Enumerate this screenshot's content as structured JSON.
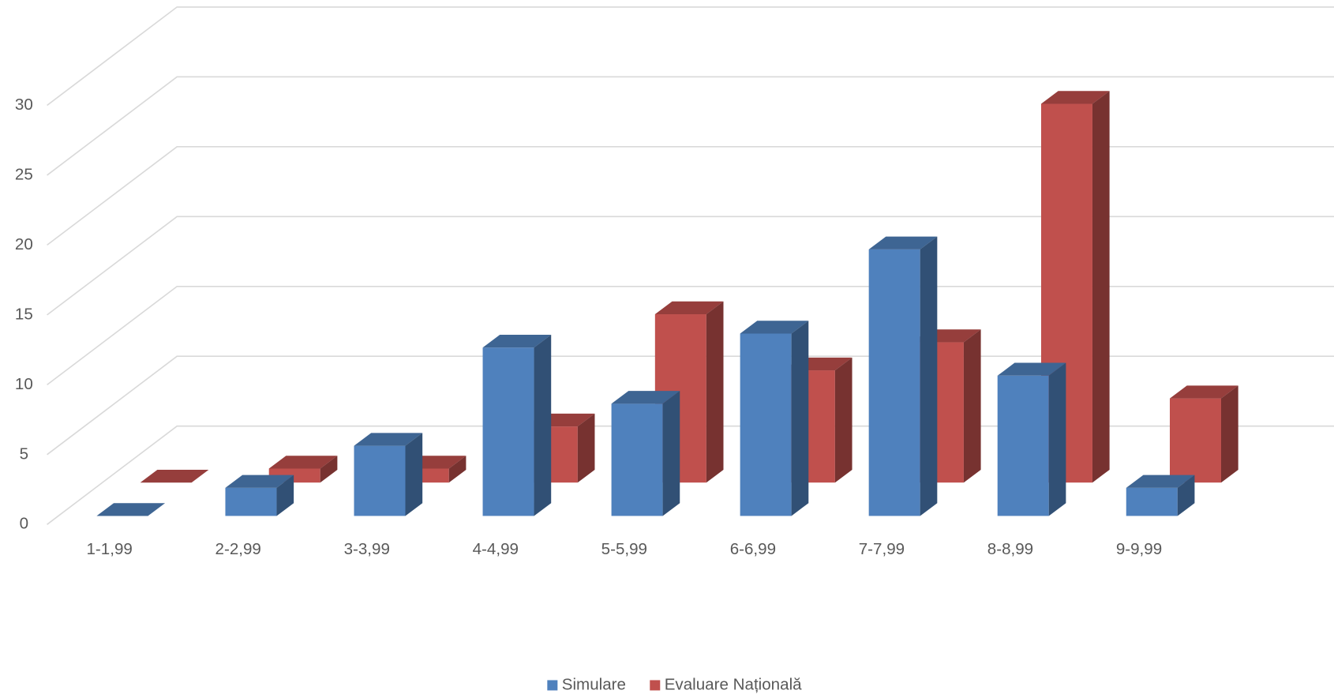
{
  "chart_data": {
    "type": "bar3d",
    "categories": [
      "1-1,99",
      "2-2,99",
      "3-3,99",
      "4-4,99",
      "5-5,99",
      "6-6,99",
      "7-7,99",
      "8-8,99",
      "9-9,99"
    ],
    "series": [
      {
        "name": "Simulare",
        "color": "#4f81bd",
        "values": [
          0,
          2,
          5,
          12,
          8,
          13,
          19,
          10,
          2
        ]
      },
      {
        "name": "Evaluare Națională",
        "color": "#c0504d",
        "values": [
          0,
          1,
          1,
          4,
          12,
          8,
          10,
          27,
          6
        ]
      }
    ],
    "ylim": [
      0,
      30
    ],
    "yticks": [
      0,
      5,
      10,
      15,
      20,
      25,
      30
    ],
    "grid": true,
    "legend": "bottom"
  }
}
